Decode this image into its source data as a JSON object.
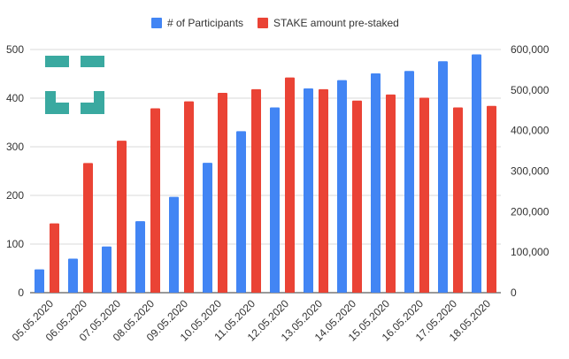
{
  "chart_data": {
    "type": "bar",
    "categories": [
      "05.05.2020",
      "06.05.2020",
      "07.05.2020",
      "08.05.2020",
      "09.05.2020",
      "10.05.2020",
      "11.05.2020",
      "12.05.2020",
      "13.05.2020",
      "14.05.2020",
      "15.05.2020",
      "16.05.2020",
      "17.05.2020",
      "18.05.2020"
    ],
    "series": [
      {
        "name": "# of Participants",
        "axis": "left",
        "color": "#4285F4",
        "values": [
          48,
          70,
          95,
          147,
          197,
          267,
          332,
          381,
          420,
          437,
          451,
          456,
          476,
          490
        ]
      },
      {
        "name": "STAKE amount pre-staked",
        "axis": "right",
        "color": "#EA4335",
        "values": [
          171000,
          320000,
          375000,
          455000,
          472000,
          493000,
          502000,
          531000,
          502000,
          474000,
          489000,
          481000,
          457000,
          461000
        ]
      }
    ],
    "y_left": {
      "min": 0,
      "max": 500,
      "ticks": [
        "0",
        "100",
        "200",
        "300",
        "400",
        "500"
      ]
    },
    "y_right": {
      "min": 0,
      "max": 600000,
      "ticks": [
        "0",
        "100,000",
        "200,000",
        "300,000",
        "400,000",
        "500,000",
        "600,000"
      ]
    },
    "legend_position": "top",
    "grid": true
  },
  "colors": {
    "grid": "#d9d9d9",
    "axis": "#333333",
    "logo": "#3aa9a0"
  },
  "logo_icon": "teal-block-logo"
}
